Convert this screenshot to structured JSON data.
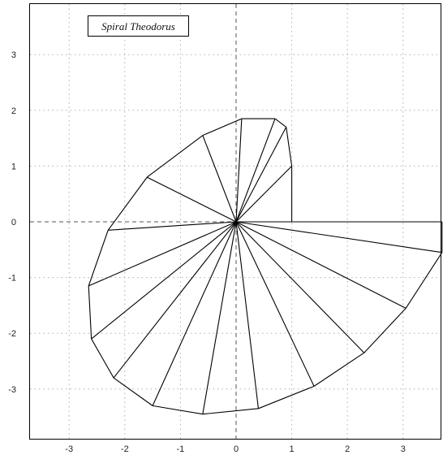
{
  "chart_data": {
    "type": "line",
    "title": "Spiral Theodorus",
    "xlabel": "",
    "ylabel": "",
    "xlim": [
      -3.6,
      3.7
    ],
    "ylim": [
      -3.9,
      3.9
    ],
    "x_ticks": [
      -3,
      -2,
      -1,
      0,
      1,
      2,
      3
    ],
    "y_ticks": [
      3,
      2,
      1,
      0,
      -1,
      -2,
      -3
    ],
    "grid": true,
    "zero_axes_dashed": true,
    "line_color": "#000000",
    "grid_color": "#b0b0b0",
    "origin": [
      0,
      0
    ],
    "outer_vertices": {
      "x": [
        1,
        1,
        0.9,
        0.7,
        0.1,
        -0.6,
        -1.6,
        -2.3,
        -2.65,
        -2.6,
        -2.2,
        -1.5,
        -0.6,
        0.4,
        1.4,
        2.3,
        3.05,
        3.7,
        3.7
      ],
      "y": [
        0,
        1,
        1.7,
        1.85,
        1.85,
        1.55,
        0.8,
        -0.15,
        -1.15,
        -2.1,
        -2.8,
        -3.3,
        -3.45,
        -3.35,
        -2.95,
        -2.35,
        -1.55,
        -0.55,
        0.0
      ]
    }
  }
}
